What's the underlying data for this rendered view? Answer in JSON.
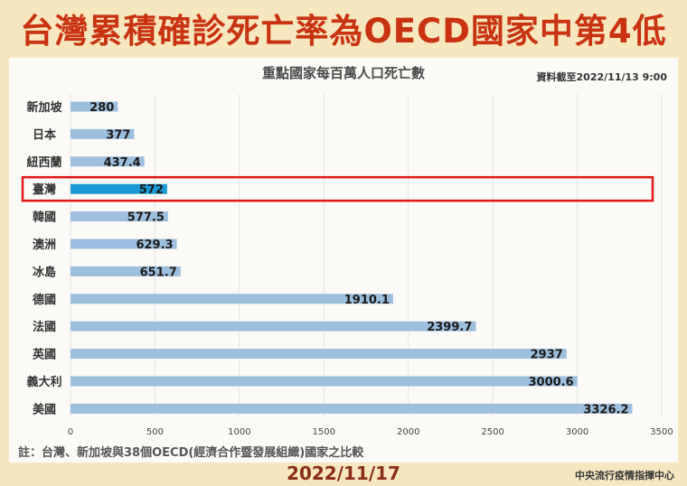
{
  "header": {
    "title": "台灣累積確診死亡率為OECD國家中第4低"
  },
  "footer": {
    "note": "註：台灣、新加坡與38個OECD(經濟合作暨發展組織)國家之比較",
    "date": "2022/11/17",
    "source": "中央流行疫情指揮中心"
  },
  "chart_data": {
    "type": "bar",
    "orientation": "horizontal",
    "title": "重點國家每百萬人口死亡數",
    "as_of": "資料截至2022/11/13 9:00",
    "categories": [
      "新加坡",
      "日本",
      "紐西蘭",
      "臺灣",
      "韓國",
      "澳洲",
      "冰島",
      "德國",
      "法國",
      "英國",
      "義大利",
      "美國"
    ],
    "values": [
      280,
      377,
      437.4,
      572,
      577.5,
      629.3,
      651.7,
      1910.1,
      2399.7,
      2937,
      3000.6,
      3326.2
    ],
    "value_labels": [
      "280",
      "377",
      "437.4",
      "572",
      "577.5",
      "629.3",
      "651.7",
      "1910.1",
      "2399.7",
      "2937",
      "3000.6",
      "3326.2"
    ],
    "highlight_category": "臺灣",
    "xlim": [
      0,
      3500
    ],
    "xticks": [
      0,
      500,
      1000,
      1500,
      2000,
      2500,
      3000,
      3500
    ],
    "grid": true,
    "colors": {
      "bar": "#9dbfdf",
      "highlight_bar": "#1b9ad6",
      "highlight_box": "#e01818",
      "grid": "#e3e3e3"
    }
  }
}
